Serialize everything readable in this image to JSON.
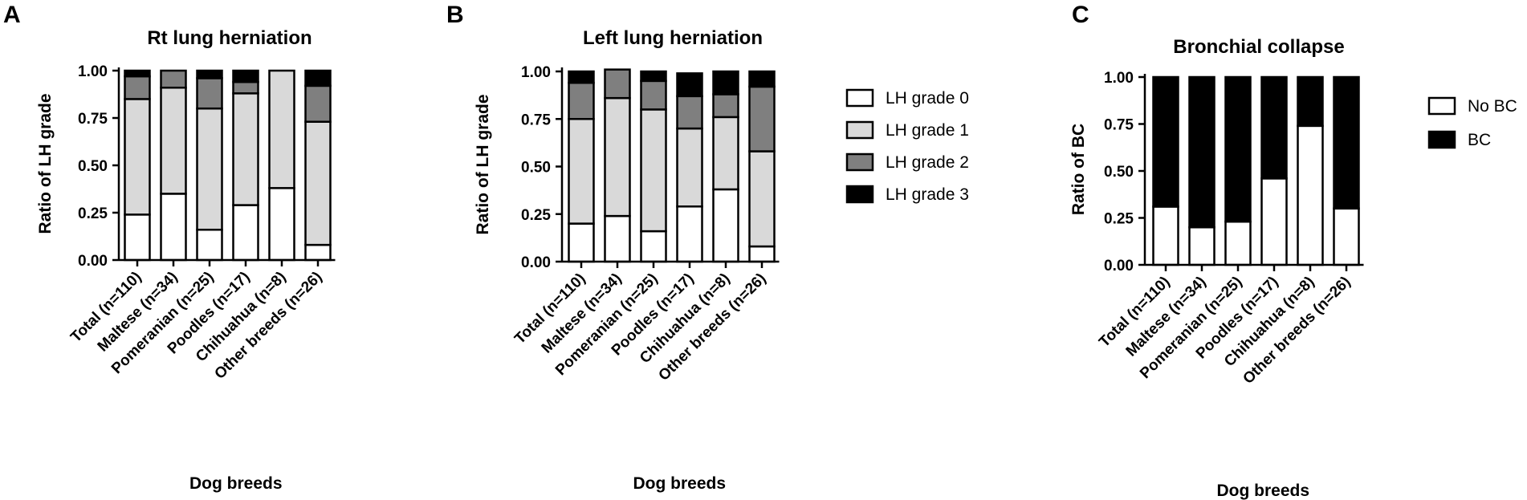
{
  "chart_data": [
    {
      "panel": "A",
      "type": "bar",
      "stacked": true,
      "title": "Rt lung herniation",
      "xlabel": "Dog breeds",
      "ylabel": "Ratio of LH grade",
      "ylim": [
        0,
        1
      ],
      "yticks": [
        "0.00",
        "0.25",
        "0.50",
        "0.75",
        "1.00"
      ],
      "categories": [
        "Total (n=110)",
        "Maltese (n=34)",
        "Pomeranian (n=25)",
        "Poodles (n=17)",
        "Chihuahua (n=8)",
        "Other breeds (n=26)"
      ],
      "series": [
        {
          "name": "LH grade 0",
          "color": "#ffffff",
          "values": [
            0.24,
            0.35,
            0.16,
            0.29,
            0.38,
            0.08
          ]
        },
        {
          "name": "LH grade 1",
          "color": "#d9d9d9",
          "values": [
            0.61,
            0.56,
            0.64,
            0.59,
            0.62,
            0.65
          ]
        },
        {
          "name": "LH grade 2",
          "color": "#7f7f7f",
          "values": [
            0.12,
            0.09,
            0.16,
            0.06,
            0.0,
            0.19
          ]
        },
        {
          "name": "LH grade 3",
          "color": "#000000",
          "values": [
            0.03,
            0.0,
            0.04,
            0.06,
            0.0,
            0.08
          ]
        }
      ]
    },
    {
      "panel": "B",
      "type": "bar",
      "stacked": true,
      "title": "Left lung herniation",
      "xlabel": "Dog breeds",
      "ylabel": "Ratio of LH grade",
      "ylim": [
        0,
        1
      ],
      "yticks": [
        "0.00",
        "0.25",
        "0.50",
        "0.75",
        "1.00"
      ],
      "categories": [
        "Total (n=110)",
        "Maltese (n=34)",
        "Pomeranian (n=25)",
        "Poodles (n=17)",
        "Chihuahua (n=8)",
        "Other breeds (n=26)"
      ],
      "legend": {
        "position": "right",
        "entries": [
          "LH grade 0",
          "LH grade 1",
          "LH grade 2",
          "LH grade 3"
        ]
      },
      "series": [
        {
          "name": "LH grade 0",
          "color": "#ffffff",
          "values": [
            0.2,
            0.24,
            0.16,
            0.29,
            0.38,
            0.08
          ]
        },
        {
          "name": "LH grade 1",
          "color": "#d9d9d9",
          "values": [
            0.55,
            0.62,
            0.64,
            0.41,
            0.38,
            0.5
          ]
        },
        {
          "name": "LH grade 2",
          "color": "#7f7f7f",
          "values": [
            0.19,
            0.15,
            0.15,
            0.17,
            0.12,
            0.34
          ]
        },
        {
          "name": "LH grade 3",
          "color": "#000000",
          "values": [
            0.06,
            0.0,
            0.05,
            0.12,
            0.12,
            0.08
          ]
        }
      ]
    },
    {
      "panel": "C",
      "type": "bar",
      "stacked": true,
      "title": "Bronchial collapse",
      "xlabel": "Dog breeds",
      "ylabel": "Ratio of BC",
      "ylim": [
        0,
        1
      ],
      "yticks": [
        "0.00",
        "0.25",
        "0.50",
        "0.75",
        "1.00"
      ],
      "categories": [
        "Total (n=110)",
        "Maltese (n=34)",
        "Pomeranian (n=25)",
        "Poodles (n=17)",
        "Chihuahua (n=8)",
        "Other breeds (n=26)"
      ],
      "legend": {
        "position": "right",
        "entries": [
          "No BC",
          "BC"
        ]
      },
      "series": [
        {
          "name": "No BC",
          "color": "#ffffff",
          "values": [
            0.31,
            0.2,
            0.23,
            0.46,
            0.74,
            0.3
          ]
        },
        {
          "name": "BC",
          "color": "#000000",
          "values": [
            0.69,
            0.8,
            0.77,
            0.54,
            0.26,
            0.7
          ]
        }
      ]
    }
  ]
}
